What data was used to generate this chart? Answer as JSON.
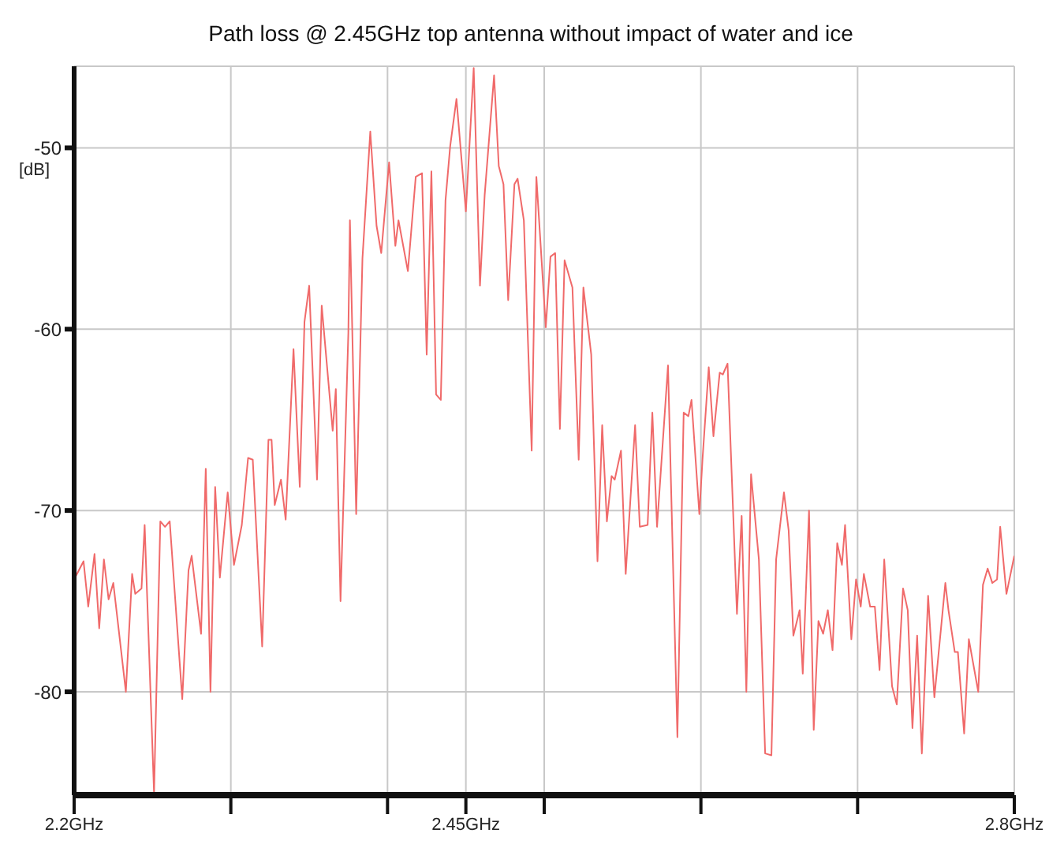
{
  "chart_data": {
    "type": "line",
    "title": "Path loss @ 2.45GHz top antenna without impact of water and ice",
    "ylabel": "[dB]",
    "xlim": [
      2.2,
      2.8
    ],
    "xticks": [
      {
        "value": 2.2,
        "label": "2.2GHz"
      },
      {
        "value": 2.3,
        "label": null
      },
      {
        "value": 2.4,
        "label": null
      },
      {
        "value": 2.45,
        "label": "2.45GHz"
      },
      {
        "value": 2.5,
        "label": null
      },
      {
        "value": 2.6,
        "label": null
      },
      {
        "value": 2.7,
        "label": null
      },
      {
        "value": 2.8,
        "label": "2.8GHz"
      }
    ],
    "ylim": [
      -85.7,
      -45.5
    ],
    "yticks": [
      -80,
      -70,
      -60,
      -50
    ],
    "grid": true,
    "legend": false,
    "marker": "none",
    "line_style": "solid",
    "x": [
      2.2,
      2.206,
      2.209,
      2.213,
      2.216,
      2.219,
      2.222,
      2.225,
      2.233,
      2.237,
      2.239,
      2.243,
      2.245,
      2.251,
      2.255,
      2.258,
      2.261,
      2.269,
      2.273,
      2.275,
      2.281,
      2.284,
      2.287,
      2.29,
      2.293,
      2.298,
      2.302,
      2.307,
      2.311,
      2.314,
      2.32,
      2.324,
      2.326,
      2.328,
      2.332,
      2.335,
      2.34,
      2.344,
      2.347,
      2.35,
      2.355,
      2.358,
      2.365,
      2.367,
      2.37,
      2.375,
      2.376,
      2.38,
      2.384,
      2.389,
      2.393,
      2.396,
      2.401,
      2.405,
      2.407,
      2.413,
      2.418,
      2.422,
      2.425,
      2.428,
      2.431,
      2.434,
      2.437,
      2.44,
      2.444,
      2.45,
      2.455,
      2.459,
      2.462,
      2.468,
      2.471,
      2.474,
      2.477,
      2.481,
      2.483,
      2.487,
      2.492,
      2.495,
      2.501,
      2.504,
      2.507,
      2.51,
      2.513,
      2.518,
      2.522,
      2.525,
      2.53,
      2.534,
      2.537,
      2.54,
      2.543,
      2.545,
      2.549,
      2.552,
      2.558,
      2.561,
      2.566,
      2.569,
      2.572,
      2.579,
      2.585,
      2.589,
      2.592,
      2.594,
      2.599,
      2.601,
      2.605,
      2.608,
      2.612,
      2.614,
      2.617,
      2.623,
      2.626,
      2.629,
      2.632,
      2.637,
      2.641,
      2.645,
      2.648,
      2.653,
      2.656,
      2.659,
      2.663,
      2.665,
      2.669,
      2.672,
      2.675,
      2.678,
      2.681,
      2.684,
      2.687,
      2.69,
      2.692,
      2.696,
      2.699,
      2.702,
      2.704,
      2.708,
      2.711,
      2.714,
      2.717,
      2.722,
      2.725,
      2.729,
      2.732,
      2.735,
      2.738,
      2.741,
      2.745,
      2.749,
      2.756,
      2.758,
      2.762,
      2.764,
      2.768,
      2.771,
      2.777,
      2.78,
      2.783,
      2.786,
      2.789,
      2.791,
      2.795,
      2.8
    ],
    "series": [
      {
        "color": "#f06a6a",
        "values": [
          -73.8,
          -72.8,
          -75.3,
          -72.4,
          -76.5,
          -72.7,
          -74.9,
          -74.0,
          -80.0,
          -73.5,
          -74.6,
          -74.3,
          -70.8,
          -85.6,
          -70.6,
          -70.9,
          -70.6,
          -80.4,
          -73.3,
          -72.5,
          -76.8,
          -67.7,
          -80.0,
          -68.7,
          -73.7,
          -69.0,
          -73.0,
          -70.8,
          -67.1,
          -67.2,
          -77.5,
          -66.1,
          -66.1,
          -69.7,
          -68.3,
          -70.5,
          -61.1,
          -68.7,
          -59.6,
          -57.6,
          -68.3,
          -58.7,
          -65.6,
          -63.3,
          -75.0,
          -60.2,
          -54.0,
          -70.2,
          -56.1,
          -49.1,
          -54.3,
          -55.8,
          -50.8,
          -55.4,
          -54.0,
          -56.8,
          -51.6,
          -51.4,
          -61.4,
          -51.3,
          -63.6,
          -63.9,
          -52.9,
          -49.9,
          -47.3,
          -53.5,
          -45.6,
          -57.6,
          -52.6,
          -46.0,
          -51.0,
          -52.0,
          -58.4,
          -52.0,
          -51.7,
          -54.0,
          -66.7,
          -51.6,
          -59.9,
          -56.0,
          -55.8,
          -65.5,
          -56.2,
          -57.7,
          -67.2,
          -57.7,
          -61.4,
          -72.8,
          -65.3,
          -70.6,
          -68.1,
          -68.3,
          -66.7,
          -73.5,
          -65.3,
          -70.9,
          -70.8,
          -64.6,
          -70.9,
          -62.0,
          -82.5,
          -64.6,
          -64.8,
          -63.9,
          -70.2,
          -67.2,
          -62.1,
          -65.9,
          -62.4,
          -62.5,
          -61.9,
          -75.7,
          -70.3,
          -80.0,
          -68.0,
          -72.7,
          -83.4,
          -83.5,
          -72.7,
          -69.0,
          -71.1,
          -76.9,
          -75.5,
          -79.0,
          -70.0,
          -82.1,
          -76.1,
          -76.8,
          -75.5,
          -77.7,
          -71.8,
          -73.0,
          -70.8,
          -77.1,
          -73.8,
          -75.3,
          -73.5,
          -75.3,
          -75.3,
          -78.8,
          -72.7,
          -79.7,
          -80.7,
          -74.3,
          -75.5,
          -82.0,
          -76.9,
          -83.4,
          -74.7,
          -80.3,
          -74.0,
          -75.5,
          -77.8,
          -77.8,
          -82.3,
          -77.1,
          -80.0,
          -74.1,
          -73.2,
          -74.0,
          -73.8,
          -70.9,
          -74.6,
          -72.5
        ]
      }
    ]
  }
}
